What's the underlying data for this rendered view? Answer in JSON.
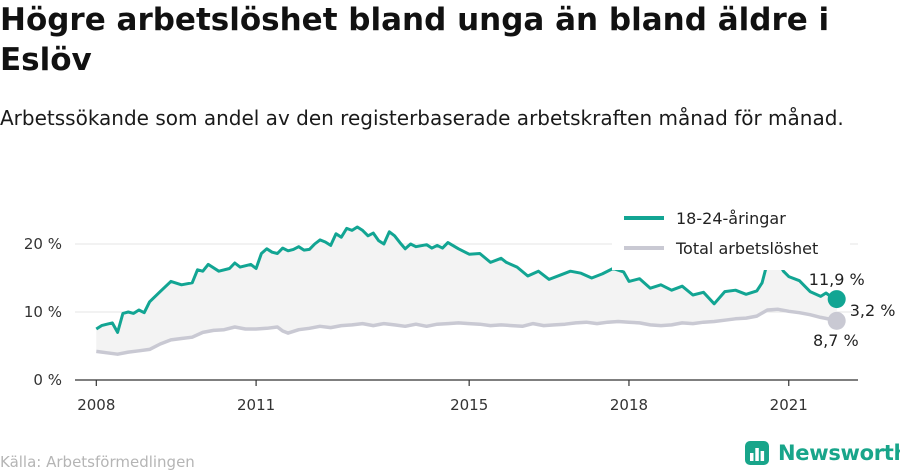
{
  "header": {
    "title": "Högre arbetslöshet bland unga än bland äldre i Eslöv",
    "subtitle": "Arbetssökande som andel av den registerbaserade arbetskraften månad för månad."
  },
  "footer": {
    "source": "Källa: Arbetsförmedlingen",
    "brand": "Newsworthy"
  },
  "colors": {
    "youth": "#12a593",
    "total": "#c9c9d3",
    "fill": "#f3f3f3",
    "brand": "#18a58a"
  },
  "chart_data": {
    "type": "line",
    "x_range": [
      2007.6,
      2022.3
    ],
    "ylim": [
      0,
      25
    ],
    "y_ticks": [
      {
        "value": 0,
        "label": "0 %"
      },
      {
        "value": 10,
        "label": "10 %"
      },
      {
        "value": 20,
        "label": "20 %"
      }
    ],
    "x_ticks": [
      {
        "value": 2008,
        "label": "2008"
      },
      {
        "value": 2011,
        "label": "2011"
      },
      {
        "value": 2015,
        "label": "2015"
      },
      {
        "value": 2018,
        "label": "2018"
      },
      {
        "value": 2021,
        "label": "2021"
      }
    ],
    "grid": "horizontal",
    "legend_position": "top-right",
    "gap_label": "3,2 %",
    "series": [
      {
        "name": "18-24-åringar",
        "end_label": "11,9 %",
        "points": [
          [
            2008.0,
            7.5
          ],
          [
            2008.1,
            8.0
          ],
          [
            2008.2,
            8.2
          ],
          [
            2008.3,
            8.4
          ],
          [
            2008.4,
            7.0
          ],
          [
            2008.5,
            9.8
          ],
          [
            2008.6,
            10.0
          ],
          [
            2008.7,
            9.8
          ],
          [
            2008.8,
            10.3
          ],
          [
            2008.9,
            9.9
          ],
          [
            2009.0,
            11.5
          ],
          [
            2009.2,
            13.0
          ],
          [
            2009.4,
            14.5
          ],
          [
            2009.6,
            14.0
          ],
          [
            2009.8,
            14.3
          ],
          [
            2009.9,
            16.2
          ],
          [
            2010.0,
            16.0
          ],
          [
            2010.1,
            17.0
          ],
          [
            2010.3,
            16.0
          ],
          [
            2010.5,
            16.4
          ],
          [
            2010.6,
            17.2
          ],
          [
            2010.7,
            16.6
          ],
          [
            2010.9,
            17.0
          ],
          [
            2011.0,
            16.4
          ],
          [
            2011.1,
            18.6
          ],
          [
            2011.2,
            19.3
          ],
          [
            2011.3,
            18.8
          ],
          [
            2011.4,
            18.6
          ],
          [
            2011.5,
            19.4
          ],
          [
            2011.6,
            19.0
          ],
          [
            2011.7,
            19.2
          ],
          [
            2011.8,
            19.6
          ],
          [
            2011.9,
            19.1
          ],
          [
            2012.0,
            19.2
          ],
          [
            2012.1,
            20.0
          ],
          [
            2012.2,
            20.6
          ],
          [
            2012.3,
            20.3
          ],
          [
            2012.4,
            19.8
          ],
          [
            2012.5,
            21.5
          ],
          [
            2012.6,
            21.0
          ],
          [
            2012.7,
            22.3
          ],
          [
            2012.8,
            22.0
          ],
          [
            2012.9,
            22.5
          ],
          [
            2013.0,
            22.0
          ],
          [
            2013.1,
            21.2
          ],
          [
            2013.2,
            21.6
          ],
          [
            2013.3,
            20.5
          ],
          [
            2013.4,
            20.0
          ],
          [
            2013.5,
            21.8
          ],
          [
            2013.6,
            21.2
          ],
          [
            2013.7,
            20.2
          ],
          [
            2013.8,
            19.3
          ],
          [
            2013.9,
            20.0
          ],
          [
            2014.0,
            19.6
          ],
          [
            2014.2,
            19.9
          ],
          [
            2014.3,
            19.4
          ],
          [
            2014.4,
            19.8
          ],
          [
            2014.5,
            19.4
          ],
          [
            2014.6,
            20.2
          ],
          [
            2014.8,
            19.3
          ],
          [
            2015.0,
            18.5
          ],
          [
            2015.2,
            18.6
          ],
          [
            2015.4,
            17.3
          ],
          [
            2015.6,
            17.9
          ],
          [
            2015.7,
            17.3
          ],
          [
            2015.9,
            16.6
          ],
          [
            2016.1,
            15.3
          ],
          [
            2016.3,
            16.0
          ],
          [
            2016.5,
            14.8
          ],
          [
            2016.7,
            15.4
          ],
          [
            2016.9,
            16.0
          ],
          [
            2017.1,
            15.7
          ],
          [
            2017.3,
            15.0
          ],
          [
            2017.5,
            15.6
          ],
          [
            2017.7,
            16.4
          ],
          [
            2017.9,
            15.9
          ],
          [
            2018.0,
            14.5
          ],
          [
            2018.2,
            14.9
          ],
          [
            2018.4,
            13.5
          ],
          [
            2018.6,
            14.0
          ],
          [
            2018.8,
            13.2
          ],
          [
            2019.0,
            13.8
          ],
          [
            2019.2,
            12.5
          ],
          [
            2019.4,
            12.9
          ],
          [
            2019.6,
            11.2
          ],
          [
            2019.8,
            13.0
          ],
          [
            2020.0,
            13.2
          ],
          [
            2020.2,
            12.6
          ],
          [
            2020.4,
            13.1
          ],
          [
            2020.5,
            14.3
          ],
          [
            2020.6,
            17.3
          ],
          [
            2020.7,
            18.0
          ],
          [
            2020.8,
            17.5
          ],
          [
            2020.9,
            16.0
          ],
          [
            2021.0,
            15.2
          ],
          [
            2021.2,
            14.6
          ],
          [
            2021.4,
            13.0
          ],
          [
            2021.6,
            12.3
          ],
          [
            2021.7,
            12.8
          ],
          [
            2021.8,
            12.2
          ],
          [
            2021.9,
            11.9
          ]
        ]
      },
      {
        "name": "Total arbetslöshet",
        "end_label": "8,7 %",
        "points": [
          [
            2008.0,
            4.2
          ],
          [
            2008.2,
            4.0
          ],
          [
            2008.4,
            3.8
          ],
          [
            2008.6,
            4.1
          ],
          [
            2008.8,
            4.3
          ],
          [
            2009.0,
            4.5
          ],
          [
            2009.2,
            5.3
          ],
          [
            2009.4,
            5.9
          ],
          [
            2009.6,
            6.1
          ],
          [
            2009.8,
            6.3
          ],
          [
            2010.0,
            7.0
          ],
          [
            2010.2,
            7.3
          ],
          [
            2010.4,
            7.4
          ],
          [
            2010.6,
            7.8
          ],
          [
            2010.8,
            7.5
          ],
          [
            2011.0,
            7.5
          ],
          [
            2011.2,
            7.6
          ],
          [
            2011.4,
            7.8
          ],
          [
            2011.5,
            7.2
          ],
          [
            2011.6,
            6.9
          ],
          [
            2011.8,
            7.4
          ],
          [
            2012.0,
            7.6
          ],
          [
            2012.2,
            7.9
          ],
          [
            2012.4,
            7.7
          ],
          [
            2012.6,
            8.0
          ],
          [
            2012.8,
            8.1
          ],
          [
            2013.0,
            8.3
          ],
          [
            2013.2,
            8.0
          ],
          [
            2013.4,
            8.3
          ],
          [
            2013.6,
            8.1
          ],
          [
            2013.8,
            7.9
          ],
          [
            2014.0,
            8.2
          ],
          [
            2014.2,
            7.9
          ],
          [
            2014.4,
            8.2
          ],
          [
            2014.6,
            8.3
          ],
          [
            2014.8,
            8.4
          ],
          [
            2015.0,
            8.3
          ],
          [
            2015.2,
            8.2
          ],
          [
            2015.4,
            8.0
          ],
          [
            2015.6,
            8.1
          ],
          [
            2015.8,
            8.0
          ],
          [
            2016.0,
            7.9
          ],
          [
            2016.2,
            8.3
          ],
          [
            2016.4,
            8.0
          ],
          [
            2016.6,
            8.1
          ],
          [
            2016.8,
            8.2
          ],
          [
            2017.0,
            8.4
          ],
          [
            2017.2,
            8.5
          ],
          [
            2017.4,
            8.3
          ],
          [
            2017.6,
            8.5
          ],
          [
            2017.8,
            8.6
          ],
          [
            2018.0,
            8.5
          ],
          [
            2018.2,
            8.4
          ],
          [
            2018.4,
            8.1
          ],
          [
            2018.6,
            8.0
          ],
          [
            2018.8,
            8.1
          ],
          [
            2019.0,
            8.4
          ],
          [
            2019.2,
            8.3
          ],
          [
            2019.4,
            8.5
          ],
          [
            2019.6,
            8.6
          ],
          [
            2019.8,
            8.8
          ],
          [
            2020.0,
            9.0
          ],
          [
            2020.2,
            9.1
          ],
          [
            2020.4,
            9.4
          ],
          [
            2020.6,
            10.3
          ],
          [
            2020.8,
            10.4
          ],
          [
            2021.0,
            10.1
          ],
          [
            2021.2,
            9.9
          ],
          [
            2021.4,
            9.6
          ],
          [
            2021.6,
            9.2
          ],
          [
            2021.8,
            8.9
          ],
          [
            2021.9,
            8.7
          ]
        ]
      }
    ]
  }
}
